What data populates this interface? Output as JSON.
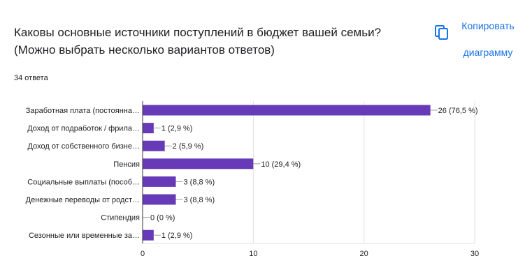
{
  "question": {
    "line1": "Каковы основные источники поступлений в бюджет вашей семьи?",
    "line2": "(Можно выбрать несколько вариантов ответов)"
  },
  "responses_count": "34 ответа",
  "copy_button": {
    "line1": "Копировать",
    "line2": "диаграмму",
    "icon": "copy-icon"
  },
  "colors": {
    "bar": "#673ab7",
    "accent": "#1a73e8",
    "grid": "#e0e0e0"
  },
  "chart_data": {
    "type": "bar",
    "orientation": "horizontal",
    "categories": [
      "Заработная плата (постоянна…",
      "Доход от подработок / фрила…",
      "Доход от собственного бизне…",
      "Пенсия",
      "Социальные выплаты (пособ…",
      "Денежные переводы от родст…",
      "Стипендия",
      "Сезонные или временные за…"
    ],
    "values": [
      26,
      1,
      2,
      10,
      3,
      3,
      0,
      1
    ],
    "data_labels": [
      "26 (76,5 %)",
      "1 (2,9 %)",
      "2 (5,9 %)",
      "10 (29,4 %)",
      "3 (8,8 %)",
      "3 (8,8 %)",
      "0 (0 %)",
      "1 (2,9 %)"
    ],
    "xlim": [
      0,
      30
    ],
    "xticks": [
      0,
      10,
      20,
      30
    ],
    "grid": true,
    "legend": "none"
  }
}
